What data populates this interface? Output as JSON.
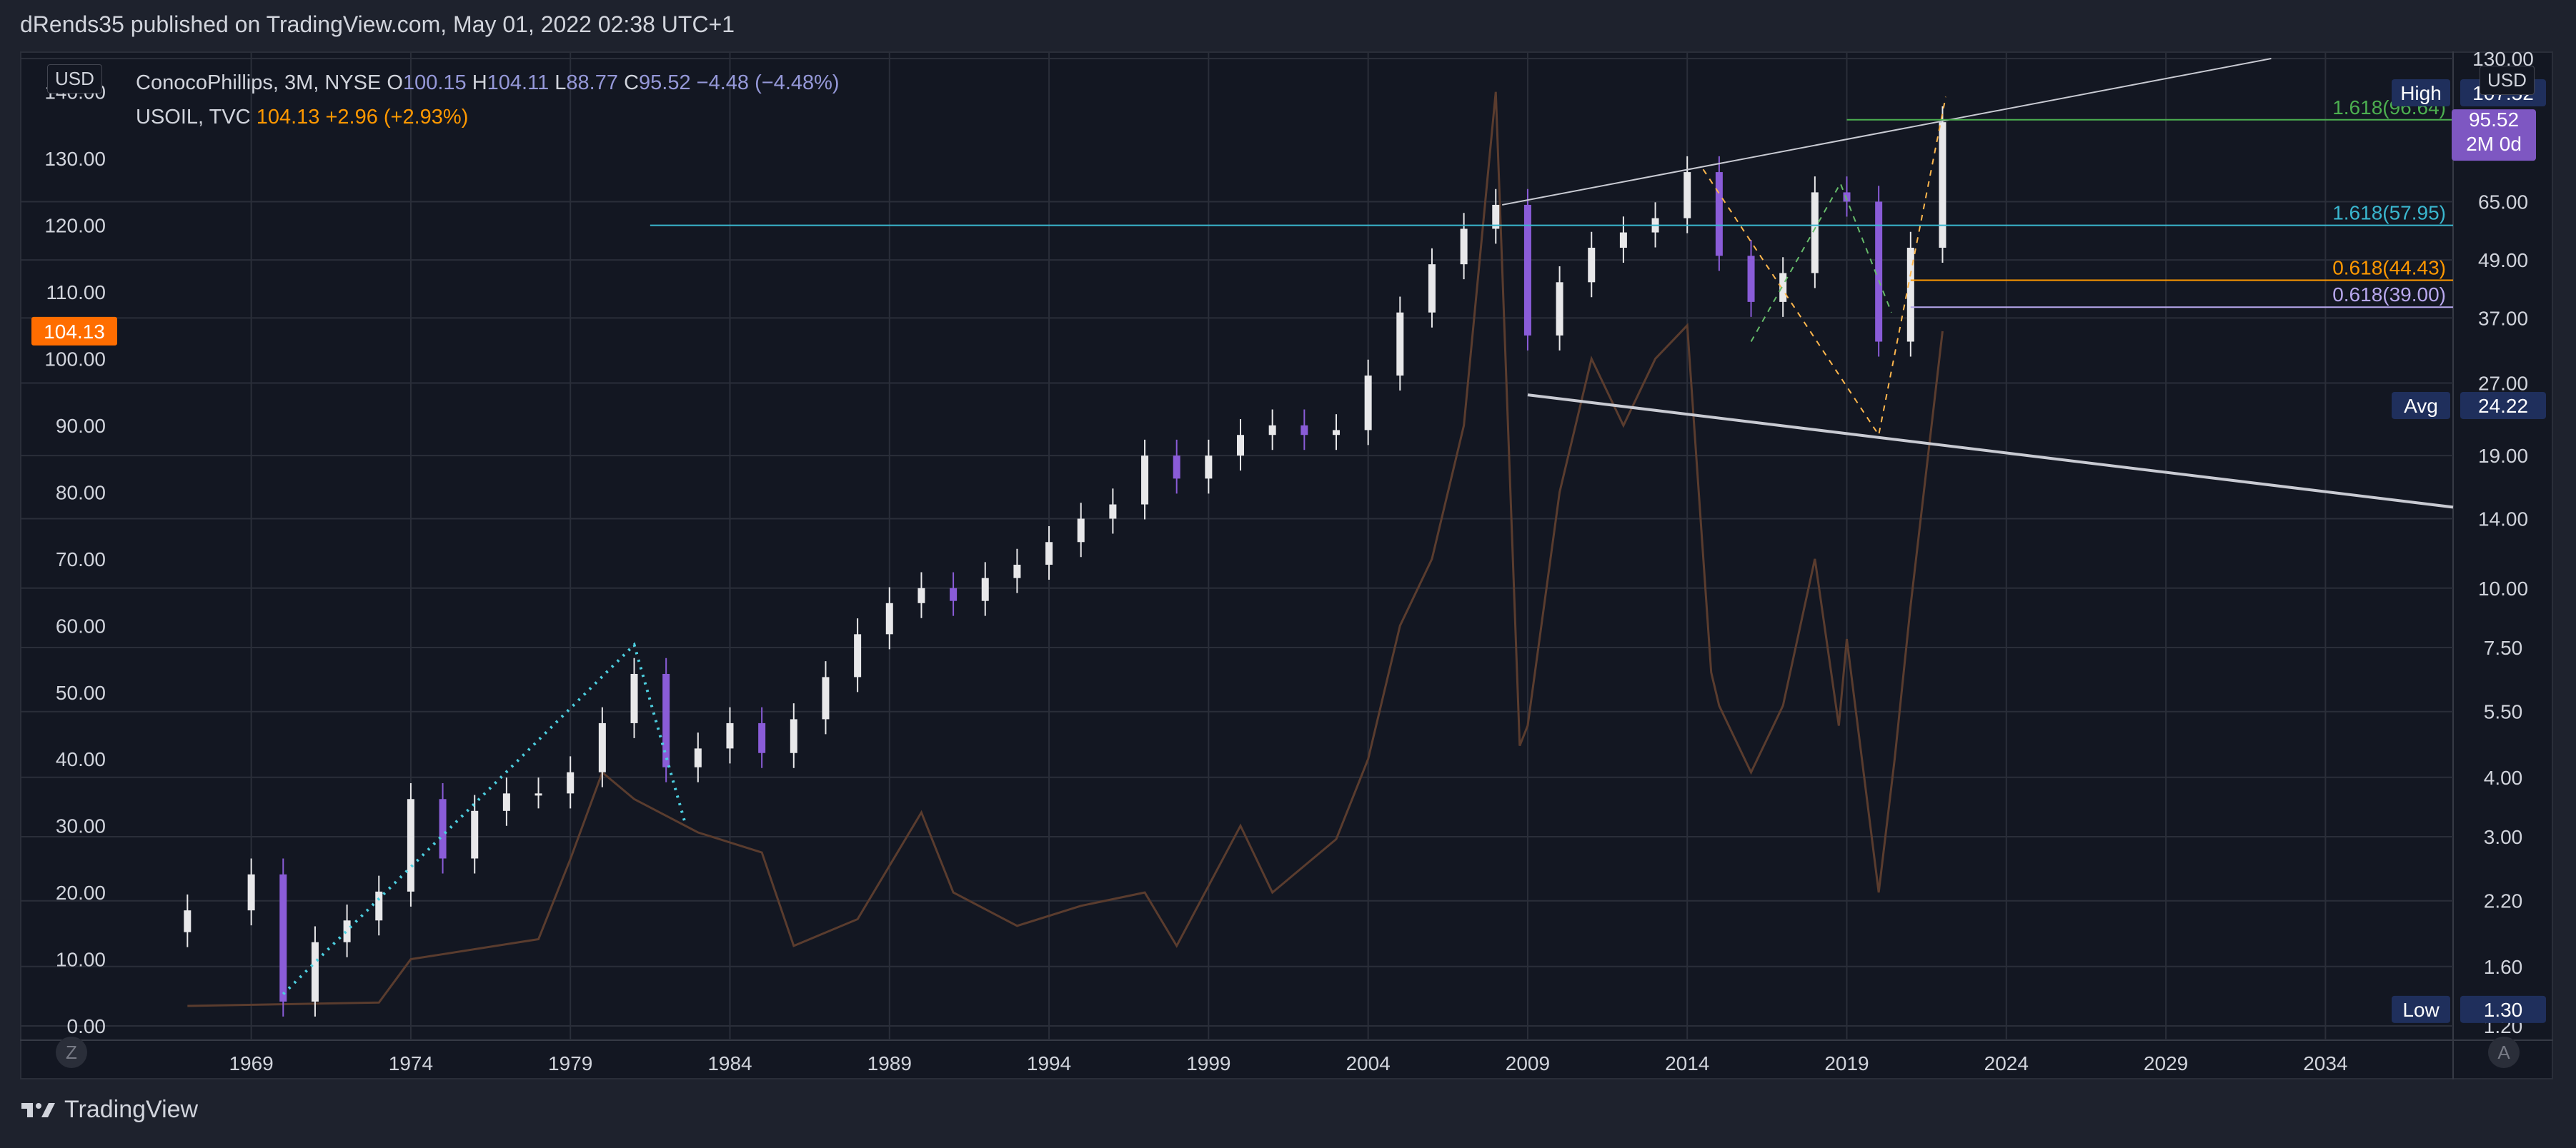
{
  "header": {
    "published_line": "dRends35 published on TradingView.com, May 01, 2022 02:38 UTC+1"
  },
  "legend": {
    "main": {
      "symbol": "ConocoPhillips, 3M, NYSE",
      "o_key": "O",
      "o": "100.15",
      "h_key": "H",
      "h": "104.11",
      "l_key": "L",
      "l": "88.77",
      "c_key": "C",
      "c": "95.52",
      "chg": "−4.48 (−4.48%)"
    },
    "oil": {
      "symbol": "USOIL, TVC",
      "value": "104.13",
      "chg": "+2.96 (+2.93%)"
    }
  },
  "currency_left": "USD",
  "currency_right": "USD",
  "left_axis_badge": "104.13",
  "right_badges": {
    "high_label": "High",
    "high_value": "107.52",
    "last_price": "95.52",
    "countdown": "2M 0d",
    "avg_label": "Avg",
    "avg_value": "24.22",
    "low_label": "Low",
    "low_value": "1.30"
  },
  "footer": {
    "brand": "TradingView",
    "left_button": "Z",
    "right_button": "A"
  },
  "colors": {
    "background": "#131722",
    "up": "#e8e8ea",
    "down": "#8a5cd8",
    "oil": "#5a3c2e",
    "fib_green": "#4caf50",
    "fib_teal": "#3ab7cf",
    "fib_orange": "#ff9800",
    "fib_lavender": "#b8a8ee",
    "trendline": "#c8cad2",
    "last_price": "#7e57c2",
    "badge_navy": "#1f2f5c"
  },
  "chart_data": {
    "type": "candlestick",
    "series": [
      {
        "name": "ConocoPhillips, 3M, NYSE",
        "axis": "right",
        "scale": "log",
        "points": [
          {
            "x": 1967,
            "y": 2.1
          },
          {
            "x": 1969,
            "y": 2.5
          },
          {
            "x": 1970,
            "y": 1.35
          },
          {
            "x": 1971,
            "y": 1.8
          },
          {
            "x": 1972,
            "y": 2.0
          },
          {
            "x": 1973,
            "y": 2.3
          },
          {
            "x": 1974,
            "y": 3.6
          },
          {
            "x": 1975,
            "y": 2.7
          },
          {
            "x": 1976,
            "y": 3.4
          },
          {
            "x": 1977,
            "y": 3.7
          },
          {
            "x": 1978,
            "y": 3.7
          },
          {
            "x": 1979,
            "y": 4.1
          },
          {
            "x": 1980,
            "y": 5.2
          },
          {
            "x": 1981,
            "y": 6.6
          },
          {
            "x": 1982,
            "y": 4.2
          },
          {
            "x": 1983,
            "y": 4.6
          },
          {
            "x": 1984,
            "y": 5.2
          },
          {
            "x": 1985,
            "y": 4.5
          },
          {
            "x": 1986,
            "y": 5.3
          },
          {
            "x": 1987,
            "y": 6.5
          },
          {
            "x": 1988,
            "y": 8.0
          },
          {
            "x": 1989,
            "y": 9.3
          },
          {
            "x": 1990,
            "y": 10.0
          },
          {
            "x": 1991,
            "y": 9.4
          },
          {
            "x": 1992,
            "y": 10.5
          },
          {
            "x": 1993,
            "y": 11.2
          },
          {
            "x": 1994,
            "y": 12.5
          },
          {
            "x": 1995,
            "y": 14.0
          },
          {
            "x": 1996,
            "y": 15.0
          },
          {
            "x": 1997,
            "y": 19.0
          },
          {
            "x": 1998,
            "y": 17.0
          },
          {
            "x": 1999,
            "y": 19.0
          },
          {
            "x": 2000,
            "y": 21.0
          },
          {
            "x": 2001,
            "y": 22.0
          },
          {
            "x": 2002,
            "y": 21.0
          },
          {
            "x": 2003,
            "y": 21.5
          },
          {
            "x": 2004,
            "y": 28.0
          },
          {
            "x": 2005,
            "y": 38.0
          },
          {
            "x": 2006,
            "y": 48.0
          },
          {
            "x": 2007,
            "y": 57.0
          },
          {
            "x": 2008,
            "y": 64.0
          },
          {
            "x": 2009,
            "y": 34.0
          },
          {
            "x": 2010,
            "y": 44.0
          },
          {
            "x": 2011,
            "y": 52.0
          },
          {
            "x": 2012,
            "y": 56.0
          },
          {
            "x": 2013,
            "y": 60.0
          },
          {
            "x": 2014,
            "y": 75.0
          },
          {
            "x": 2015,
            "y": 50.0
          },
          {
            "x": 2016,
            "y": 40.0
          },
          {
            "x": 2017,
            "y": 46.0
          },
          {
            "x": 2018,
            "y": 68.0
          },
          {
            "x": 2019,
            "y": 65.0
          },
          {
            "x": 2020,
            "y": 33.0
          },
          {
            "x": 2021,
            "y": 52.0
          },
          {
            "x": 2022,
            "y": 95.52
          }
        ]
      },
      {
        "name": "USOIL, TVC",
        "axis": "left",
        "type": "line",
        "points": [
          {
            "x": 1967,
            "y": 3.0
          },
          {
            "x": 1973,
            "y": 3.5
          },
          {
            "x": 1974,
            "y": 10.0
          },
          {
            "x": 1978,
            "y": 13.0
          },
          {
            "x": 1979,
            "y": 25.0
          },
          {
            "x": 1980,
            "y": 38.0
          },
          {
            "x": 1981,
            "y": 34.0
          },
          {
            "x": 1983,
            "y": 29.0
          },
          {
            "x": 1985,
            "y": 26.0
          },
          {
            "x": 1986,
            "y": 12.0
          },
          {
            "x": 1988,
            "y": 16.0
          },
          {
            "x": 1990,
            "y": 32.0
          },
          {
            "x": 1991,
            "y": 20.0
          },
          {
            "x": 1993,
            "y": 15.0
          },
          {
            "x": 1995,
            "y": 18.0
          },
          {
            "x": 1997,
            "y": 20.0
          },
          {
            "x": 1998,
            "y": 12.0
          },
          {
            "x": 2000,
            "y": 30.0
          },
          {
            "x": 2001,
            "y": 20.0
          },
          {
            "x": 2003,
            "y": 28.0
          },
          {
            "x": 2004,
            "y": 40.0
          },
          {
            "x": 2005,
            "y": 60.0
          },
          {
            "x": 2006,
            "y": 70.0
          },
          {
            "x": 2007,
            "y": 90.0
          },
          {
            "x": 2008,
            "y": 140.0
          },
          {
            "x": 2008.75,
            "y": 42.0
          },
          {
            "x": 2009,
            "y": 45.0
          },
          {
            "x": 2010,
            "y": 80.0
          },
          {
            "x": 2011,
            "y": 100.0
          },
          {
            "x": 2012,
            "y": 90.0
          },
          {
            "x": 2013,
            "y": 100.0
          },
          {
            "x": 2014,
            "y": 105.0
          },
          {
            "x": 2014.75,
            "y": 53.0
          },
          {
            "x": 2015,
            "y": 48.0
          },
          {
            "x": 2016,
            "y": 38.0
          },
          {
            "x": 2017,
            "y": 48.0
          },
          {
            "x": 2018,
            "y": 70.0
          },
          {
            "x": 2018.75,
            "y": 45.0
          },
          {
            "x": 2019,
            "y": 58.0
          },
          {
            "x": 2020,
            "y": 20.0
          },
          {
            "x": 2020.5,
            "y": 40.0
          },
          {
            "x": 2021,
            "y": 63.0
          },
          {
            "x": 2022,
            "y": 104.13
          }
        ]
      }
    ],
    "x_ticks": [
      "1969",
      "1974",
      "1979",
      "1984",
      "1989",
      "1994",
      "1999",
      "2004",
      "2009",
      "2014",
      "2019",
      "2024",
      "2029",
      "2034"
    ],
    "left_ticks": [
      "0.00",
      "10.00",
      "20.00",
      "30.00",
      "40.00",
      "50.00",
      "60.00",
      "70.00",
      "80.00",
      "90.00",
      "100.00",
      "110.00",
      "120.00",
      "130.00",
      "140.00"
    ],
    "right_ticks": [
      "1.20",
      "1.60",
      "2.20",
      "3.00",
      "4.00",
      "5.50",
      "7.50",
      "10.00",
      "14.00",
      "19.00",
      "27.00",
      "37.00",
      "49.00",
      "65.00",
      "130.00"
    ],
    "fib_levels": [
      {
        "label": "1.618(96.64)",
        "value": 96.64
      },
      {
        "label": "1.618(57.95)",
        "value": 57.95
      },
      {
        "label": "0.618(44.43)",
        "value": 44.43
      },
      {
        "label": "0.618(39.00)",
        "value": 39.0
      }
    ],
    "xlim": [
      1965,
      2038
    ],
    "right_ylim": [
      1.2,
      130
    ],
    "left_ylim": [
      0,
      145
    ],
    "grid": true
  }
}
